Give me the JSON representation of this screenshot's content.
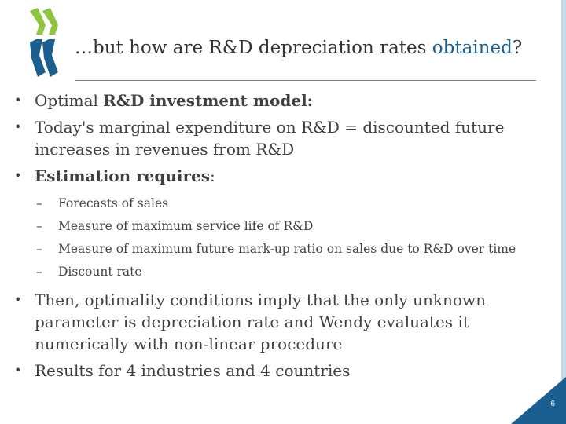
{
  "title": {
    "prefix": "…but how are R&D depreciation rates ",
    "accent": "obtained",
    "suffix": "?"
  },
  "colors": {
    "accent": "#1a5f8f",
    "logo_green": "#8cc63f",
    "logo_blue": "#1a5f8f",
    "corner": "#1a5f8f"
  },
  "icons": {
    "logo": "oecd-logo-icon",
    "bullet": "bullet-dot"
  },
  "bullets": {
    "b1": {
      "pre": "Optimal ",
      "bold": "R&D investment model:"
    },
    "b2": {
      "text": "Today's marginal expenditure on R&D = discounted future increases in revenues from R&D"
    },
    "b3": {
      "bold": "Estimation requires",
      "post": ":"
    },
    "subs": [
      "Forecasts of sales",
      "Measure of maximum service life of R&D",
      "Measure of maximum future mark-up ratio on sales due to R&D over time",
      "Discount rate"
    ],
    "b4": {
      "text": "Then, optimality conditions imply that the only unknown parameter is depreciation rate and Wendy evaluates it numerically with non-linear procedure"
    },
    "b5": {
      "text": "Results for 4 industries and 4 countries"
    }
  },
  "page_number": "6"
}
